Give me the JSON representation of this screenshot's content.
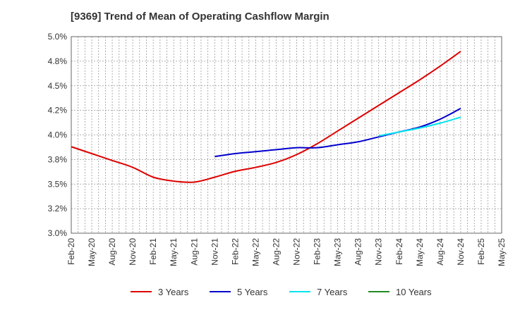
{
  "chart_data": {
    "type": "line",
    "title": "[9369]  Trend of Mean of Operating Cashflow Margin",
    "xlabel": "",
    "ylabel": "",
    "ylim": [
      3.0,
      5.0
    ],
    "yticks": [
      "3.0%",
      "3.2%",
      "3.5%",
      "3.8%",
      "4.0%",
      "4.2%",
      "4.5%",
      "4.8%",
      "5.0%"
    ],
    "xticks": [
      "Feb-20",
      "May-20",
      "Aug-20",
      "Nov-20",
      "Feb-21",
      "May-21",
      "Aug-21",
      "Nov-21",
      "Feb-22",
      "May-22",
      "Aug-22",
      "Nov-22",
      "Feb-23",
      "May-23",
      "Aug-23",
      "Nov-23",
      "Feb-24",
      "May-24",
      "Aug-24",
      "Nov-24",
      "Feb-25",
      "May-25"
    ],
    "grid": true,
    "legend_position": "bottom",
    "series": [
      {
        "name": "3 Years",
        "color": "#dd0000",
        "points": [
          [
            "Feb-20",
            3.88
          ],
          [
            "May-20",
            3.81
          ],
          [
            "Aug-20",
            3.74
          ],
          [
            "Nov-20",
            3.67
          ],
          [
            "Feb-21",
            3.57
          ],
          [
            "May-21",
            3.53
          ],
          [
            "Aug-21",
            3.52
          ],
          [
            "Nov-21",
            3.57
          ],
          [
            "Feb-22",
            3.63
          ],
          [
            "May-22",
            3.67
          ],
          [
            "Aug-22",
            3.72
          ],
          [
            "Nov-22",
            3.8
          ],
          [
            "Feb-23",
            3.91
          ],
          [
            "May-23",
            4.04
          ],
          [
            "Aug-23",
            4.17
          ],
          [
            "Nov-23",
            4.3
          ],
          [
            "Feb-24",
            4.43
          ],
          [
            "May-24",
            4.56
          ],
          [
            "Aug-24",
            4.7
          ],
          [
            "Nov-24",
            4.85
          ]
        ]
      },
      {
        "name": "5 Years",
        "color": "#0000cc",
        "points": [
          [
            "Nov-21",
            3.78
          ],
          [
            "Feb-22",
            3.81
          ],
          [
            "May-22",
            3.83
          ],
          [
            "Aug-22",
            3.85
          ],
          [
            "Nov-22",
            3.87
          ],
          [
            "Feb-23",
            3.87
          ],
          [
            "May-23",
            3.9
          ],
          [
            "Aug-23",
            3.93
          ],
          [
            "Nov-23",
            3.98
          ],
          [
            "Feb-24",
            4.03
          ],
          [
            "May-24",
            4.08
          ],
          [
            "Aug-24",
            4.16
          ],
          [
            "Nov-24",
            4.27
          ]
        ]
      },
      {
        "name": "7 Years",
        "color": "#00e5ee",
        "points": [
          [
            "Nov-23",
            3.99
          ],
          [
            "Feb-24",
            4.03
          ],
          [
            "May-24",
            4.07
          ],
          [
            "Aug-24",
            4.12
          ],
          [
            "Nov-24",
            4.18
          ]
        ]
      },
      {
        "name": "10 Years",
        "color": "#228b22",
        "points": []
      }
    ]
  }
}
